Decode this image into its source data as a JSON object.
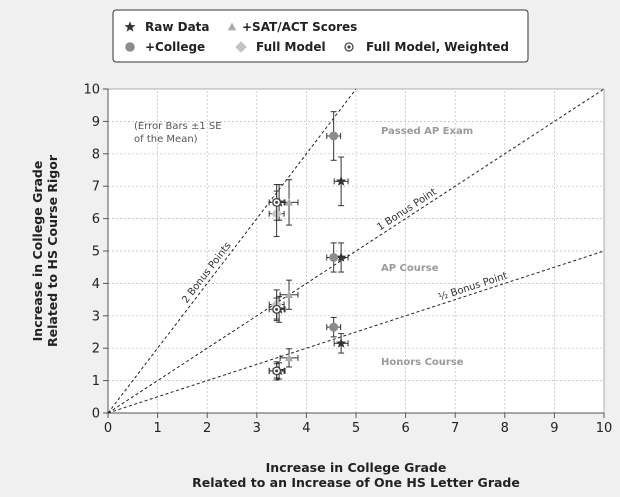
{
  "chart_data": {
    "type": "scatter",
    "xlabel": [
      "Increase in College Grade",
      "Related to an Increase of One HS Letter Grade"
    ],
    "ylabel": [
      "Increase in College Grade",
      "Related to HS Course Rigor"
    ],
    "xlim": [
      0,
      10
    ],
    "ylim": [
      0,
      10
    ],
    "x_ticks": [
      "0",
      "1",
      "2",
      "3",
      "4",
      "5",
      "6",
      "7",
      "8",
      "9",
      "10"
    ],
    "y_ticks": [
      "0",
      "1",
      "2",
      "3",
      "4",
      "5",
      "6",
      "7",
      "8",
      "9",
      "10"
    ],
    "grid": true,
    "legend_position": "top",
    "annotations": {
      "error_note": [
        "(Error Bars ±1 SE",
        "of the Mean)"
      ],
      "passed_ap": "Passed AP Exam",
      "ap_course": "AP Course",
      "honors_course": "Honors Course"
    },
    "reference_lines": [
      {
        "label": "2 Bonus Points",
        "slope": 2
      },
      {
        "label": "1 Bonus Point",
        "slope": 1
      },
      {
        "label": "½ Bonus Point",
        "slope": 0.5
      }
    ],
    "series": [
      {
        "name": "Raw Data",
        "marker": "star",
        "color": "#333333",
        "points": [
          {
            "x": 3.45,
            "y": 6.5,
            "xerr": 0.12,
            "yerr": 0.55
          },
          {
            "x": 3.45,
            "y": 3.2,
            "xerr": 0.12,
            "yerr": 0.4
          },
          {
            "x": 3.45,
            "y": 1.3,
            "xerr": 0.12,
            "yerr": 0.25
          },
          {
            "x": 4.7,
            "y": 7.15,
            "xerr": 0.14,
            "yerr": 0.75
          },
          {
            "x": 4.7,
            "y": 4.8,
            "xerr": 0.14,
            "yerr": 0.45
          },
          {
            "x": 4.7,
            "y": 2.15,
            "xerr": 0.14,
            "yerr": 0.3
          }
        ]
      },
      {
        "name": "+SAT/ACT Scores",
        "marker": "triangle",
        "color": "#aaaaaa",
        "points": [
          {
            "x": 3.65,
            "y": 6.5,
            "xerr": 0.18,
            "yerr": 0.7
          },
          {
            "x": 3.65,
            "y": 3.65,
            "xerr": 0.18,
            "yerr": 0.45
          },
          {
            "x": 3.65,
            "y": 1.7,
            "xerr": 0.18,
            "yerr": 0.28
          }
        ]
      },
      {
        "name": "+College",
        "marker": "circle",
        "color": "#8c8c8c",
        "points": [
          {
            "x": 4.55,
            "y": 8.55,
            "xerr": 0.14,
            "yerr": 0.75
          },
          {
            "x": 4.55,
            "y": 4.8,
            "xerr": 0.14,
            "yerr": 0.45
          },
          {
            "x": 4.55,
            "y": 2.65,
            "xerr": 0.14,
            "yerr": 0.3
          }
        ]
      },
      {
        "name": "Full Model",
        "marker": "diamond",
        "color": "#c4c4c4",
        "points": [
          {
            "x": 3.4,
            "y": 6.15,
            "xerr": 0.15,
            "yerr": 0.7
          },
          {
            "x": 3.4,
            "y": 3.35,
            "xerr": 0.15,
            "yerr": 0.45
          },
          {
            "x": 3.4,
            "y": 1.3,
            "xerr": 0.15,
            "yerr": 0.28
          }
        ]
      },
      {
        "name": "Full Model, Weighted",
        "marker": "dotcircle",
        "color": "#444444",
        "points": [
          {
            "x": 3.4,
            "y": 6.5,
            "xerr": 0.15,
            "yerr": 0.55
          },
          {
            "x": 3.4,
            "y": 3.2,
            "xerr": 0.15,
            "yerr": 0.35
          },
          {
            "x": 3.4,
            "y": 1.3,
            "xerr": 0.15,
            "yerr": 0.22
          }
        ]
      }
    ]
  },
  "legend": [
    {
      "label": "Raw Data",
      "marker": "star"
    },
    {
      "label": "+SAT/ACT Scores",
      "marker": "triangle"
    },
    {
      "label": "+College",
      "marker": "circle"
    },
    {
      "label": "Full Model",
      "marker": "diamond"
    },
    {
      "label": "Full Model, Weighted",
      "marker": "dotcircle"
    }
  ],
  "colors": {
    "background": "#f0f0f0",
    "plot_background": "#ffffff",
    "axis": "#555555",
    "grid": "#bbbbbb",
    "annotation_text": "#9a9a9a",
    "error_bar": "#333333"
  }
}
